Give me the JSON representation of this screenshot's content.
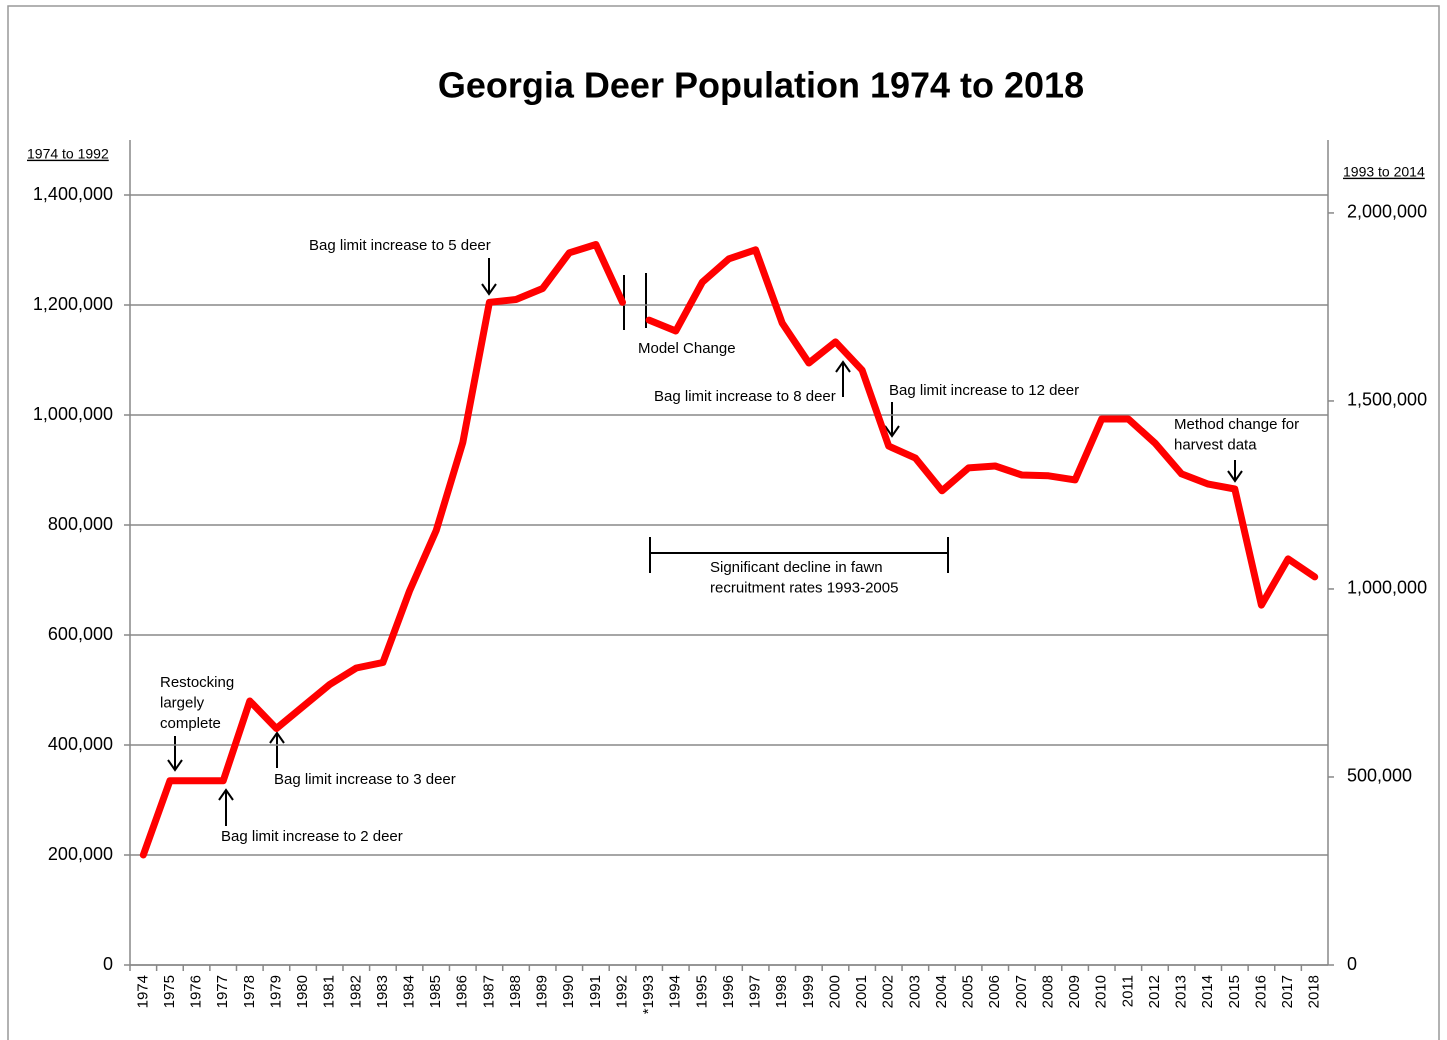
{
  "chart_data": {
    "type": "line",
    "title": "Georgia Deer Population 1974 to 2018",
    "categories": [
      "1974",
      "1975",
      "1976",
      "1977",
      "1978",
      "1979",
      "1980",
      "1981",
      "1982",
      "1983",
      "1984",
      "1985",
      "1986",
      "1987",
      "1988",
      "1989",
      "1990",
      "1991",
      "1992",
      "*1993",
      "1994",
      "1995",
      "1996",
      "1997",
      "1998",
      "1999",
      "2000",
      "2001",
      "2002",
      "2003",
      "2004",
      "2005",
      "2006",
      "2007",
      "2008",
      "2009",
      "2010",
      "2011",
      "2012",
      "2013",
      "2014",
      "2015",
      "2016",
      "2017",
      "2018"
    ],
    "series": [
      {
        "name": "1974 to 1992",
        "color": "#ff0000",
        "axis": "y",
        "values": [
          200000,
          335000,
          335000,
          335000,
          480000,
          430000,
          470000,
          510000,
          540000,
          550000,
          680000,
          790000,
          950000,
          1205000,
          1210000,
          1230000,
          1295000,
          1310000,
          1205000,
          null,
          null,
          null,
          null,
          null,
          null,
          null,
          null,
          null,
          null,
          null,
          null,
          null,
          null,
          null,
          null,
          null,
          null,
          null,
          null,
          null,
          null,
          null,
          null,
          null,
          null
        ]
      },
      {
        "name": "1993 to 2014",
        "color": "#ff0000",
        "axis": "y2",
        "values": [
          null,
          null,
          null,
          null,
          null,
          null,
          null,
          null,
          null,
          null,
          null,
          null,
          null,
          null,
          null,
          null,
          null,
          null,
          null,
          1715000,
          1686000,
          1816000,
          1878000,
          1902000,
          1707000,
          1601000,
          1657000,
          1582000,
          1380000,
          1348000,
          1261000,
          1322000,
          1327000,
          1303000,
          1301000,
          1290000,
          1452000,
          1452000,
          1388000,
          1306000,
          1279000,
          1266000,
          957000,
          1080000,
          1032000
        ]
      }
    ],
    "ylim": [
      0,
      1500000
    ],
    "yticks": [
      0,
      {
        "value": 200000,
        "label": "200,000"
      },
      {
        "value": 400000,
        "label": "400,000"
      },
      {
        "value": 600000,
        "label": "600,000"
      },
      {
        "value": 800000,
        "label": "800,000"
      },
      {
        "value": 1000000,
        "label": "1,000,000"
      },
      {
        "value": 1200000,
        "label": "1,200,000"
      },
      {
        "value": 1400000,
        "label": "1,400,000"
      }
    ],
    "y2lim": [
      0,
      2194000
    ],
    "y2ticks": [
      0,
      {
        "value": 500000,
        "label": "500,000"
      },
      {
        "value": 1000000,
        "label": "1,000,000"
      },
      {
        "value": 1500000,
        "label": "1,500,000"
      },
      {
        "value": 2000000,
        "label": "2,000,000"
      }
    ],
    "grid": true,
    "annotations": [
      [
        "Bag limit increase to 5 deer"
      ],
      [
        "Model Change"
      ],
      [
        "Bag limit increase to 8 deer"
      ],
      [
        "Bag limit increase to 12 deer"
      ],
      [
        "Method change for",
        "harvest data"
      ],
      [
        "Significant decline in fawn",
        "recruitment rates 1993-2005"
      ],
      [
        "Restocking",
        "largely",
        "complete"
      ],
      [
        "Bag limit increase to 3 deer"
      ],
      [
        "Bag limit increase to 2 deer"
      ]
    ]
  }
}
